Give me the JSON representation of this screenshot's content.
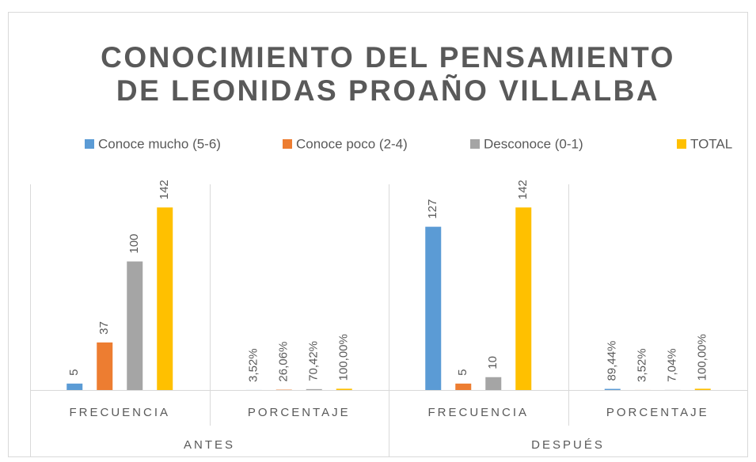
{
  "chart_data": {
    "type": "bar",
    "title": [
      "CONOCIMIENTO DEL PENSAMIENTO",
      "DE LEONIDAS PROAÑO VILLALBA"
    ],
    "groups": [
      "ANTES",
      "DESPUÉS"
    ],
    "categories": [
      "FRECUENCIA",
      "PORCENTAJE",
      "FRECUENCIA",
      "PORCENTAJE"
    ],
    "series": [
      {
        "name": "Conoce mucho (5-6)",
        "color": "#5b9bd5",
        "values": [
          5,
          0.0352,
          127,
          0.8944
        ],
        "value_labels": [
          "5",
          "3,52%",
          "127",
          "89,44%"
        ]
      },
      {
        "name": "Conoce poco (2-4)",
        "color": "#ed7d31",
        "values": [
          37,
          0.2606,
          5,
          0.0352
        ],
        "value_labels": [
          "37",
          "26,06%",
          "5",
          "3,52%"
        ]
      },
      {
        "name": "Desconoce (0-1)",
        "color": "#a5a5a5",
        "values": [
          100,
          0.7042,
          10,
          0.0704
        ],
        "value_labels": [
          "100",
          "70,42%",
          "10",
          "7,04%"
        ]
      },
      {
        "name": "TOTAL",
        "color": "#ffc000",
        "values": [
          142,
          1,
          142,
          1
        ],
        "value_labels": [
          "142",
          "100,00%",
          "142",
          "100,00%"
        ]
      }
    ],
    "ylim": [
      0,
      160
    ],
    "legend": "top"
  }
}
